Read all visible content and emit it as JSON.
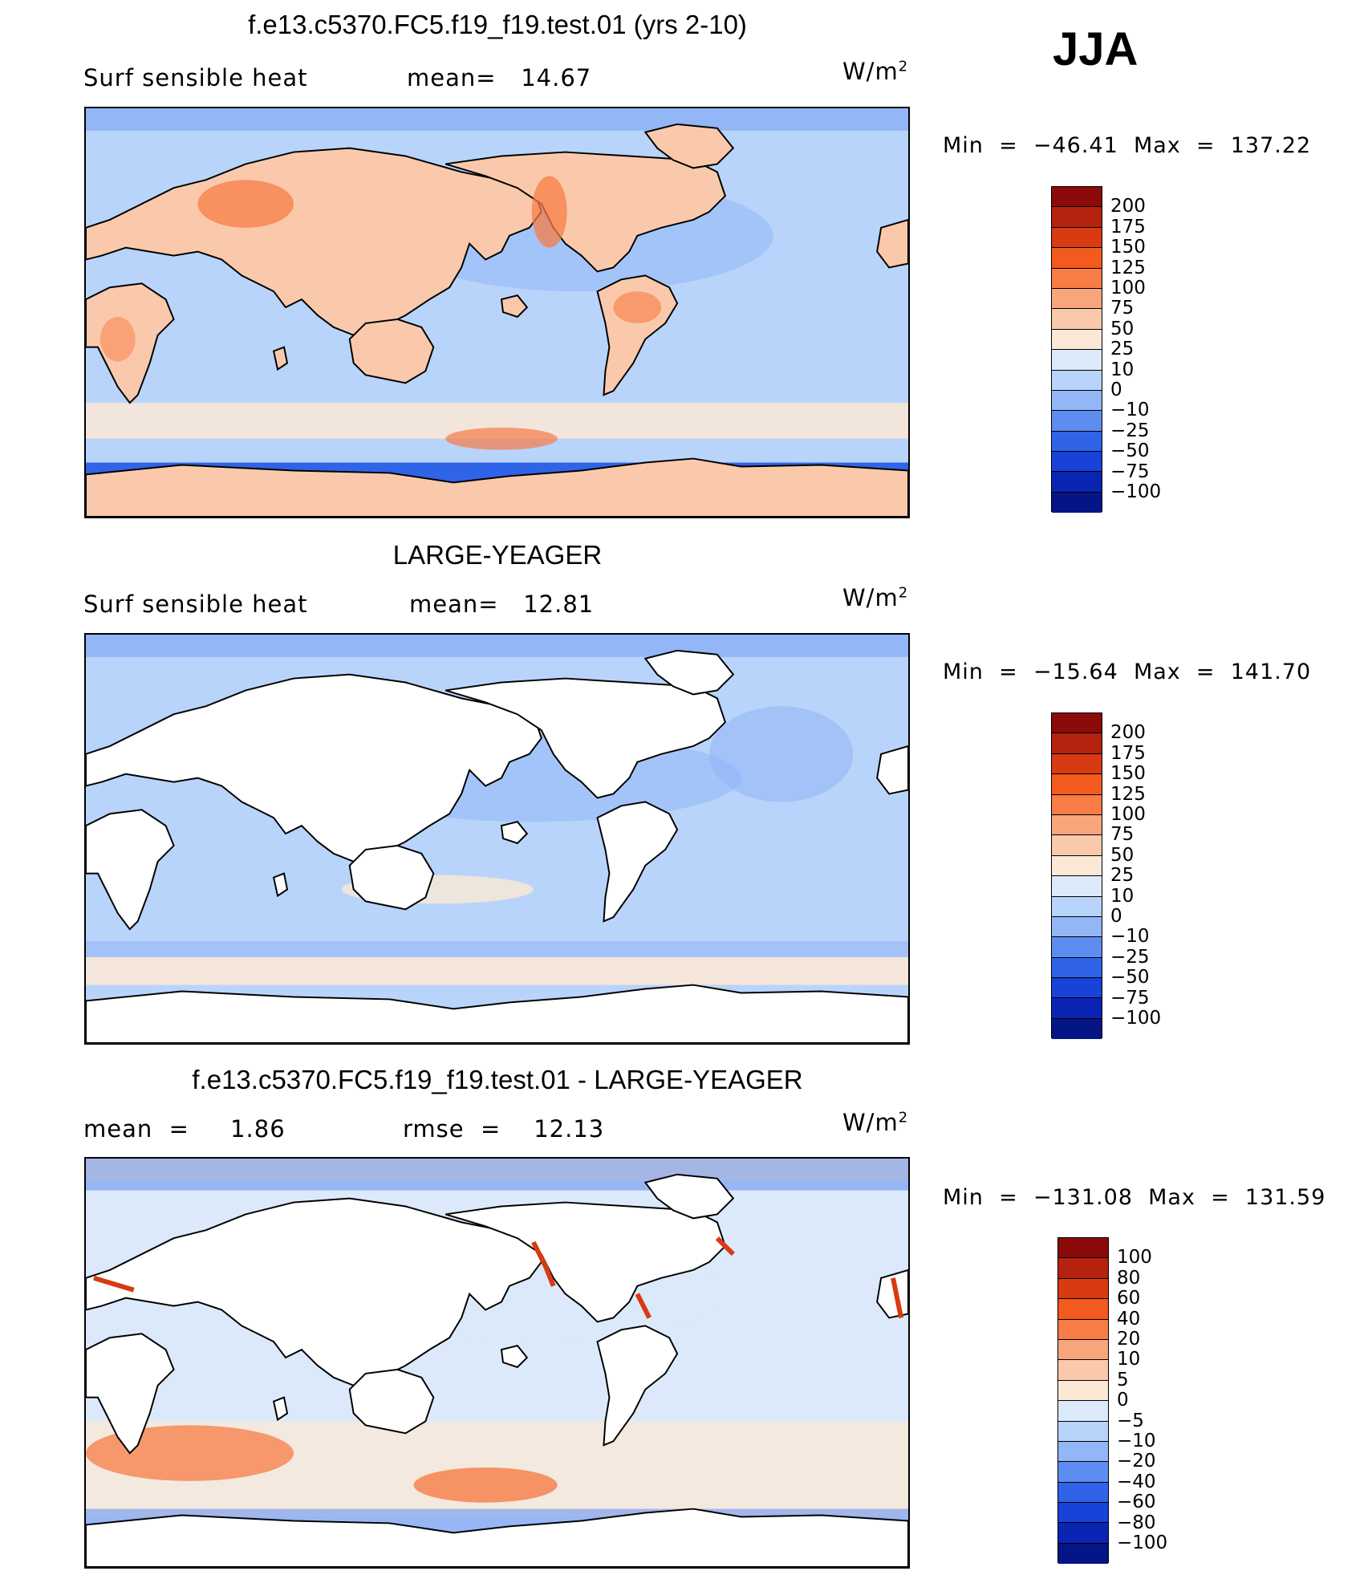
{
  "season": "JJA",
  "panels": [
    {
      "title": "f.e13.c5370.FC5.f19_f19.test.01 (yrs 2-10)",
      "left_label": "Surf sensible heat",
      "mid_label": "mean=   14.67",
      "units": "W/m",
      "units_sup": "2",
      "minmax": "Min  =  −46.41  Max  =  137.22",
      "colorbar": {
        "labels": [
          "200",
          "175",
          "150",
          "125",
          "100",
          "75",
          "50",
          "25",
          "10",
          "0",
          "−10",
          "−25",
          "−50",
          "−75",
          "−100"
        ],
        "colors": [
          "#8b0a0a",
          "#b52210",
          "#d83a12",
          "#f25a1e",
          "#f77c46",
          "#f9a57c",
          "#fac9ab",
          "#fbe8d6",
          "#dce9fa",
          "#b9d4fa",
          "#92b6f6",
          "#5d8df0",
          "#2f63e8",
          "#1842d8",
          "#0a24b4",
          "#051585"
        ]
      },
      "ocean_color": "#b9d4fa",
      "land_color": "#fac9ab",
      "hot_color": "#f77c46",
      "cold_color": "#2f63e8",
      "mid_color": "#92b6f6"
    },
    {
      "title": "LARGE-YEAGER",
      "left_label": "Surf sensible heat",
      "mid_label": "mean=   12.81",
      "units": "W/m",
      "units_sup": "2",
      "minmax": "Min  =  −15.64  Max  =  141.70",
      "colorbar": {
        "labels": [
          "200",
          "175",
          "150",
          "125",
          "100",
          "75",
          "50",
          "25",
          "10",
          "0",
          "−10",
          "−25",
          "−50",
          "−75",
          "−100"
        ],
        "colors": [
          "#8b0a0a",
          "#b52210",
          "#d83a12",
          "#f25a1e",
          "#f77c46",
          "#f9a57c",
          "#fac9ab",
          "#fbe8d6",
          "#dce9fa",
          "#b9d4fa",
          "#92b6f6",
          "#5d8df0",
          "#2f63e8",
          "#1842d8",
          "#0a24b4",
          "#051585"
        ]
      },
      "ocean_color": "#b9d4fa",
      "land_color": "#ffffff",
      "hot_color": "#fac9ab",
      "cold_color": "#5d8df0",
      "mid_color": "#92b6f6"
    },
    {
      "title": "f.e13.c5370.FC5.f19_f19.test.01 - LARGE-YEAGER",
      "left_label": "mean  =     1.86",
      "mid_label": "rmse  =    12.13",
      "units": "W/m",
      "units_sup": "2",
      "minmax": "Min  =  −131.08  Max  =  131.59",
      "colorbar": {
        "labels": [
          "100",
          "80",
          "60",
          "40",
          "20",
          "10",
          "5",
          "0",
          "−5",
          "−10",
          "−20",
          "−40",
          "−60",
          "−80",
          "−100"
        ],
        "colors": [
          "#8b0a0a",
          "#b52210",
          "#d83a12",
          "#f25a1e",
          "#f77c46",
          "#f9a57c",
          "#fac9ab",
          "#fbe8d6",
          "#dce9fa",
          "#b9d4fa",
          "#92b6f6",
          "#5d8df0",
          "#2f63e8",
          "#1842d8",
          "#0a24b4",
          "#051585"
        ]
      },
      "ocean_color": "#dce9fa",
      "land_color": "#ffffff",
      "hot_color": "#f77c46",
      "cold_color": "#5d8df0",
      "mid_color": "#fbe8d6"
    }
  ]
}
